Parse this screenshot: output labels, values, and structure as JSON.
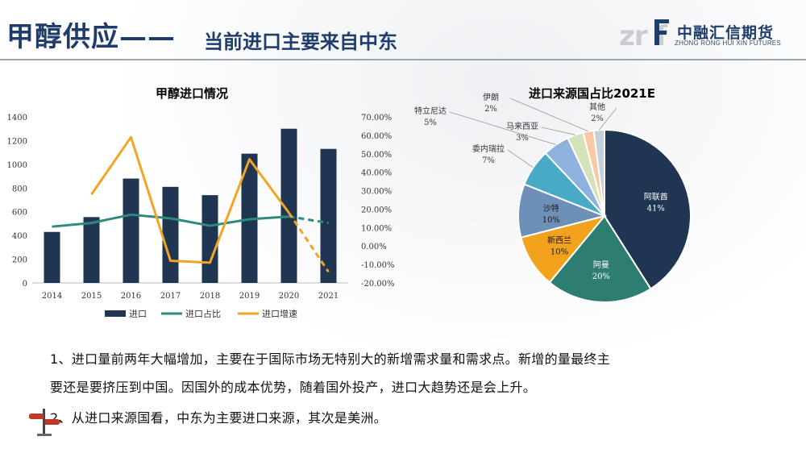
{
  "slide": {
    "title": "甲醇供应——",
    "subtitle": "当前进口主要来自中东",
    "logo_cn": "中融汇信期货",
    "logo_en": "ZHONG RONG HUI XIN FUTURES",
    "logo_mark": "zr f"
  },
  "chart_data": [
    {
      "type": "bar",
      "title": "甲醇进口情况",
      "categories": [
        "2014",
        "2015",
        "2016",
        "2017",
        "2018",
        "2019",
        "2020",
        "2021"
      ],
      "series": [
        {
          "name": "进口",
          "kind": "bar",
          "axis": "left",
          "values": [
            430,
            555,
            880,
            810,
            740,
            1090,
            1300,
            1130
          ],
          "color": "#1f3551"
        },
        {
          "name": "进口占比",
          "kind": "line",
          "axis": "right",
          "values": [
            10.5,
            12.5,
            17,
            15,
            11,
            14.5,
            16,
            12.5
          ],
          "dashed_last_segment": true,
          "color": "#2e8a7c"
        },
        {
          "name": "进口增速",
          "kind": "line",
          "axis": "right",
          "start_index": 1,
          "values": [
            null,
            28,
            59,
            -8,
            -9,
            47,
            18,
            -14
          ],
          "dashed_last_segment": true,
          "color": "#f2a524"
        }
      ],
      "left_axis": {
        "ticks": [
          "0",
          "200",
          "400",
          "600",
          "800",
          "1000",
          "1200",
          "1400"
        ],
        "ylim": [
          0,
          1400
        ]
      },
      "right_axis": {
        "ticks": [
          "-20.00%",
          "-10.00%",
          "0.00%",
          "10.00%",
          "20.00%",
          "30.00%",
          "40.00%",
          "50.00%",
          "60.00%",
          "70.00%"
        ],
        "ylim": [
          -20,
          70
        ]
      },
      "legend": [
        "进口",
        "进口占比",
        "进口增速"
      ],
      "legend_position": "bottom"
    },
    {
      "type": "pie",
      "title": "进口来源国占比2021E",
      "slices": [
        {
          "label": "阿联酋",
          "percent": "41%",
          "value": 41,
          "color": "#1f3551"
        },
        {
          "label": "阿曼",
          "percent": "20%",
          "value": 20,
          "color": "#2e7d73"
        },
        {
          "label": "新西兰",
          "percent": "10%",
          "value": 10,
          "color": "#f2a21c"
        },
        {
          "label": "沙特",
          "percent": "10%",
          "value": 10,
          "color": "#6c90b8"
        },
        {
          "label": "委内瑞拉",
          "percent": "7%",
          "value": 7,
          "color": "#48aac4"
        },
        {
          "label": "特立尼达",
          "percent": "5%",
          "value": 5,
          "color": "#8fb1de"
        },
        {
          "label": "马来西亚",
          "percent": "3%",
          "value": 3,
          "color": "#d3e2b8"
        },
        {
          "label": "伊朗",
          "percent": "2%",
          "value": 2,
          "color": "#f8c9a4"
        },
        {
          "label": "其他",
          "percent": "2%",
          "value": 2,
          "color": "#c7cfd8"
        }
      ]
    }
  ],
  "text": {
    "para1_line1": "1、进口量前两年大幅增加，主要在于国际市场无特别大的新增需求量和需求点。新增的量最终主",
    "para1_line2": "要还是要挤压到中国。因国外的成本优势，随着国外投产，进口大趋势还是会上升。",
    "para2": "2、从进口来源国看，中东为主要进口来源，其次是美洲。"
  }
}
